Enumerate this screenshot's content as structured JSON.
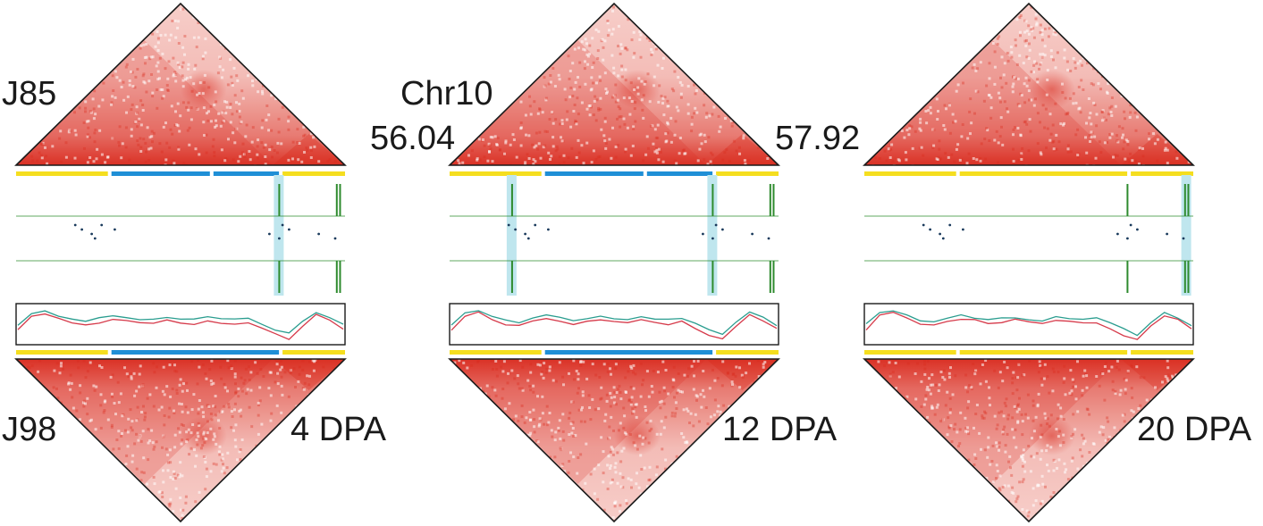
{
  "labels": {
    "sample_top": "J85",
    "sample_bottom": "J98",
    "chromosome": "Chr10",
    "start_pos": "56.04",
    "end_pos": "57.92"
  },
  "colors": {
    "heat_high": "#d92b1e",
    "heat_low": "#ffffff",
    "compartment_a": "#f5de1f",
    "compartment_b": "#1f8fd6",
    "signal": "#2e8b2e",
    "highlight": "#bfe6ee",
    "dots": "#1a3a5c",
    "line_j85": "#d63a4a",
    "line_j98": "#2a9d8f",
    "frame": "#1a1a1a"
  },
  "panels": [
    {
      "stage": "4 DPA",
      "compartments_top": [
        "A",
        "B",
        "B",
        "A"
      ],
      "compartments_bottom": [
        "A",
        "B",
        "A"
      ],
      "highlights": [
        0.8
      ]
    },
    {
      "stage": "12 DPA",
      "compartments_top": [
        "A",
        "B",
        "B",
        "A"
      ],
      "compartments_bottom": [
        "A",
        "B",
        "A"
      ],
      "highlights": [
        0.19,
        0.8
      ]
    },
    {
      "stage": "20 DPA",
      "compartments_top": [
        "A",
        "A",
        "A"
      ],
      "compartments_bottom": [
        "A",
        "A",
        "A"
      ],
      "highlights": [
        0.98
      ]
    }
  ]
}
